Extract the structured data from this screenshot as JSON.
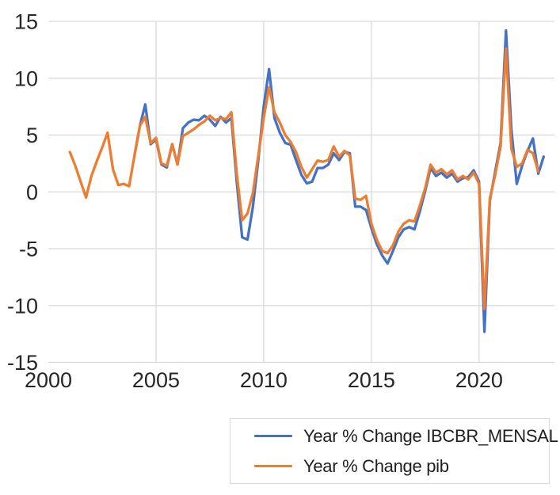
{
  "chart_data": {
    "type": "line",
    "title": "",
    "xlabel": "",
    "ylabel": "",
    "grid": true,
    "legend_position": "bottom-right",
    "gridline_color": "#d9d9d9",
    "tick_label_color": "#262626",
    "legend_border_color": "#d9d9d9",
    "x_axis": {
      "range": [
        2000,
        2023.5
      ],
      "ticks": [
        2000,
        2005,
        2010,
        2015,
        2020
      ]
    },
    "y_axis": {
      "range": [
        -15,
        15
      ],
      "ticks": [
        15,
        10,
        5,
        0,
        -5,
        -10,
        -15
      ]
    },
    "series": [
      {
        "name": "Year % Change IBCBR_MENSAL",
        "color": "#4472C4",
        "start": 2004.0,
        "step": 0.25,
        "values": [
          3.2,
          5.8,
          7.7,
          4.2,
          4.6,
          2.4,
          2.15,
          4.2,
          2.4,
          5.6,
          6.1,
          6.35,
          6.3,
          6.7,
          6.35,
          5.8,
          6.6,
          6.1,
          6.5,
          0.9,
          -4.0,
          -4.2,
          -1.3,
          2.8,
          7.5,
          10.8,
          6.5,
          5.2,
          4.3,
          4.15,
          2.8,
          1.5,
          0.75,
          0.9,
          2.1,
          2.1,
          2.4,
          3.4,
          2.8,
          3.5,
          3.4,
          -1.3,
          -1.3,
          -1.6,
          -3.2,
          -4.6,
          -5.6,
          -6.3,
          -5.2,
          -4.0,
          -3.3,
          -3.1,
          -3.3,
          -1.7,
          0.1,
          2.1,
          1.4,
          1.7,
          1.25,
          1.6,
          0.9,
          1.2,
          1.3,
          1.9,
          0.9,
          -12.3,
          -0.8,
          1.8,
          4.3,
          14.2,
          5.5,
          0.7,
          2.3,
          3.6,
          4.7,
          1.6,
          3.1
        ]
      },
      {
        "name": "Year % Change pib",
        "color": "#ED7D31",
        "start": 2001.0,
        "step": 0.25,
        "values": [
          3.5,
          2.3,
          0.9,
          -0.5,
          1.4,
          2.7,
          3.9,
          5.2,
          2.0,
          0.6,
          0.7,
          0.5,
          3.2,
          5.8,
          6.6,
          4.3,
          4.75,
          2.5,
          2.3,
          4.2,
          2.4,
          4.9,
          5.2,
          5.5,
          5.9,
          6.2,
          6.7,
          6.3,
          6.5,
          6.4,
          7.0,
          1.6,
          -2.5,
          -1.9,
          -0.1,
          3.2,
          6.5,
          9.2,
          7.0,
          6.1,
          5.0,
          4.4,
          3.5,
          2.2,
          1.25,
          2.0,
          2.75,
          2.65,
          2.8,
          4.0,
          3.1,
          3.6,
          3.2,
          -0.6,
          -0.7,
          -0.35,
          -2.8,
          -4.2,
          -5.2,
          -5.4,
          -4.7,
          -3.5,
          -2.8,
          -2.5,
          -2.6,
          -1.2,
          0.35,
          2.4,
          1.7,
          2.0,
          1.55,
          1.9,
          1.1,
          1.4,
          1.1,
          1.7,
          0.7,
          -10.3,
          -0.6,
          1.5,
          4.0,
          12.6,
          3.8,
          2.2,
          2.5,
          3.7,
          3.4,
          1.8
        ]
      }
    ]
  }
}
